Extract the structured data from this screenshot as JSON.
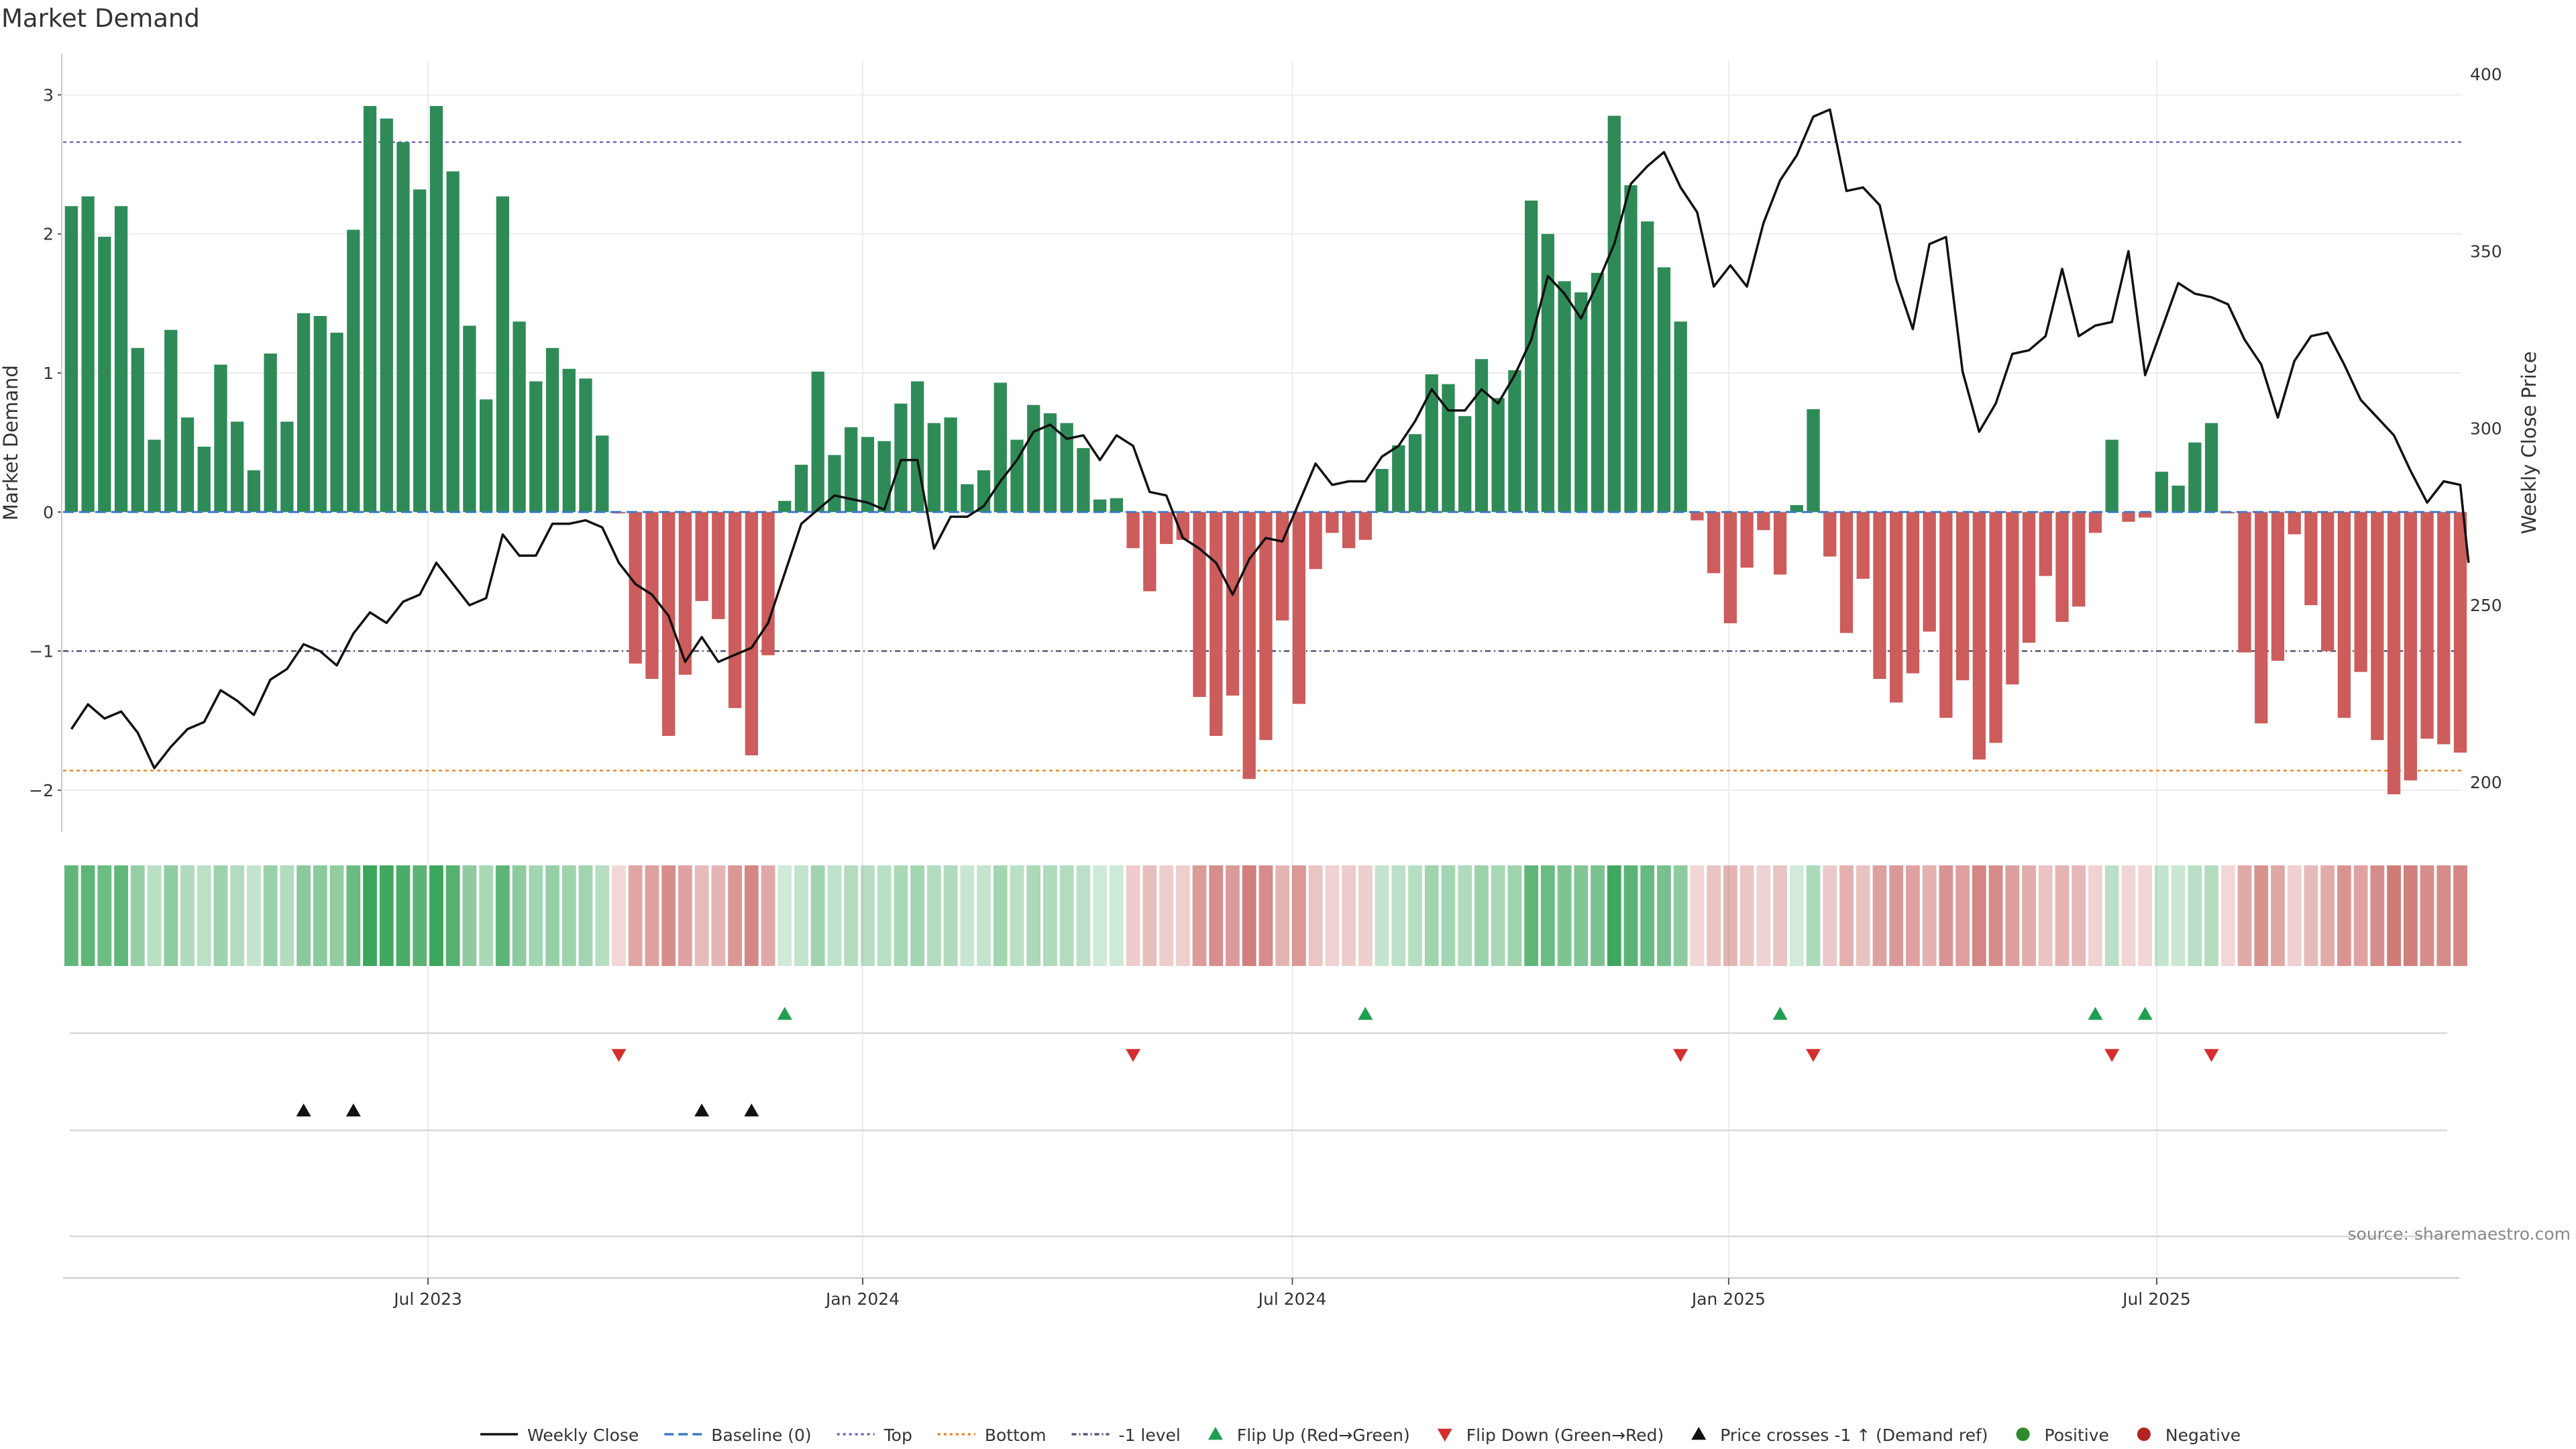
{
  "chart_data": {
    "type": "bar",
    "title": "Market Demand",
    "ylabel_left": "Market Demand",
    "ylabel_right": "Weekly Close Price",
    "source": "source: sharemaestro.com",
    "ylim": [
      -2.3,
      3.2
    ],
    "y2lim": [
      186,
      402
    ],
    "yticks_left": [
      3,
      2,
      1,
      0,
      -1,
      -2
    ],
    "yticks_left_labels": [
      "3",
      "2",
      "1",
      "0",
      "−1",
      "−2"
    ],
    "yticks_right": [
      400,
      350,
      300,
      250,
      200
    ],
    "yticks_right_labels": [
      "400",
      "350",
      "300",
      "250",
      "200"
    ],
    "x_start": "2023-02-12",
    "week_count": 144,
    "x_ticks": [
      {
        "label": "Jul 2023",
        "week": 21.5
      },
      {
        "label": "Jan 2024",
        "week": 47.7
      },
      {
        "label": "Jul 2024",
        "week": 73.6
      },
      {
        "label": "Jan 2025",
        "week": 99.9
      },
      {
        "label": "Jul 2025",
        "week": 125.7
      }
    ],
    "reference_lines": [
      {
        "name": "Top",
        "value": 2.66,
        "color": "#6a6abf",
        "dash": "dotted"
      },
      {
        "name": "-1 level",
        "value": -1.0,
        "color": "#555577",
        "dash": "dashed-dot"
      },
      {
        "name": "Bottom",
        "value": -1.86,
        "color": "#e08a2e",
        "dash": "dotted"
      },
      {
        "name": "Baseline (0)",
        "value": 0,
        "color": "#3d7ac7",
        "dash": "dashed"
      }
    ],
    "demand": [
      2.2,
      2.27,
      1.98,
      2.2,
      1.18,
      0.52,
      1.31,
      0.68,
      0.47,
      1.06,
      0.65,
      0.3,
      1.14,
      0.65,
      1.43,
      1.41,
      1.29,
      2.03,
      2.92,
      2.83,
      2.66,
      2.32,
      2.92,
      2.45,
      1.34,
      0.81,
      2.27,
      1.37,
      0.94,
      1.18,
      1.03,
      0.96,
      0.55,
      -0.01,
      -1.09,
      -1.2,
      -1.61,
      -1.17,
      -0.64,
      -0.77,
      -1.41,
      -1.75,
      -1.03,
      0.08,
      0.34,
      1.01,
      0.41,
      0.61,
      0.54,
      0.51,
      0.78,
      0.94,
      0.64,
      0.68,
      0.2,
      0.3,
      0.93,
      0.52,
      0.77,
      0.71,
      0.64,
      0.46,
      0.09,
      0.1,
      -0.26,
      -0.57,
      -0.23,
      -0.2,
      -1.33,
      -1.61,
      -1.32,
      -1.92,
      -1.64,
      -0.78,
      -1.38,
      -0.41,
      -0.15,
      -0.26,
      -0.2,
      0.31,
      0.48,
      0.56,
      0.99,
      0.92,
      0.69,
      1.1,
      0.82,
      1.02,
      2.24,
      2.0,
      1.66,
      1.58,
      1.72,
      2.85,
      2.35,
      2.09,
      1.76,
      1.37,
      -0.06,
      -0.44,
      -0.8,
      -0.4,
      -0.13,
      -0.45,
      0.05,
      0.74,
      -0.32,
      -0.87,
      -0.48,
      -1.2,
      -1.37,
      -1.16,
      -0.86,
      -1.48,
      -1.21,
      -1.78,
      -1.66,
      -1.24,
      -0.94,
      -0.46,
      -0.79,
      -0.68,
      -0.15,
      0.52,
      -0.07,
      -0.04,
      0.29,
      0.19,
      0.5,
      0.64,
      -0.01,
      -1.01,
      -1.52,
      -1.07,
      -0.16,
      -0.67,
      -1.0,
      -1.48,
      -1.15,
      -1.64,
      -2.03,
      -1.93,
      -1.63,
      -1.67,
      -1.73
    ],
    "close": [
      {
        "week": 0,
        "value": 215
      },
      {
        "week": 1,
        "value": 222
      },
      {
        "week": 2,
        "value": 218
      },
      {
        "week": 3,
        "value": 220
      },
      {
        "week": 4,
        "value": 214
      },
      {
        "week": 5,
        "value": 204
      },
      {
        "week": 6,
        "value": 210
      },
      {
        "week": 7,
        "value": 215
      },
      {
        "week": 8,
        "value": 217
      },
      {
        "week": 9,
        "value": 226
      },
      {
        "week": 10,
        "value": 223
      },
      {
        "week": 11,
        "value": 219
      },
      {
        "week": 12,
        "value": 229
      },
      {
        "week": 13,
        "value": 232
      },
      {
        "week": 14,
        "value": 239
      },
      {
        "week": 15,
        "value": 237
      },
      {
        "week": 16,
        "value": 233
      },
      {
        "week": 17,
        "value": 242
      },
      {
        "week": 18,
        "value": 248
      },
      {
        "week": 19,
        "value": 245
      },
      {
        "week": 20,
        "value": 251
      },
      {
        "week": 21,
        "value": 253
      },
      {
        "week": 22,
        "value": 262
      },
      {
        "week": 23,
        "value": 256
      },
      {
        "week": 24,
        "value": 250
      },
      {
        "week": 25,
        "value": 252
      },
      {
        "week": 26,
        "value": 270
      },
      {
        "week": 27,
        "value": 264
      },
      {
        "week": 28,
        "value": 264
      },
      {
        "week": 29,
        "value": 273
      },
      {
        "week": 30,
        "value": 273
      },
      {
        "week": 31,
        "value": 274
      },
      {
        "week": 32,
        "value": 272
      },
      {
        "week": 33,
        "value": 262
      },
      {
        "week": 34,
        "value": 256
      },
      {
        "week": 35,
        "value": 253
      },
      {
        "week": 36,
        "value": 247
      },
      {
        "week": 37,
        "value": 234
      },
      {
        "week": 38,
        "value": 241
      },
      {
        "week": 39,
        "value": 234
      },
      {
        "week": 40,
        "value": 236
      },
      {
        "week": 41,
        "value": 238
      },
      {
        "week": 42,
        "value": 245
      },
      {
        "week": 43,
        "value": 259
      },
      {
        "week": 44,
        "value": 273
      },
      {
        "week": 45,
        "value": 277
      },
      {
        "week": 46,
        "value": 281
      },
      {
        "week": 47,
        "value": 280
      },
      {
        "week": 48,
        "value": 279
      },
      {
        "week": 49,
        "value": 277
      },
      {
        "week": 50,
        "value": 291
      },
      {
        "week": 51,
        "value": 291
      },
      {
        "week": 52,
        "value": 266
      },
      {
        "week": 53,
        "value": 275
      },
      {
        "week": 54,
        "value": 275
      },
      {
        "week": 55,
        "value": 278
      },
      {
        "week": 56,
        "value": 285
      },
      {
        "week": 57,
        "value": 291
      },
      {
        "week": 58,
        "value": 299
      },
      {
        "week": 59,
        "value": 301
      },
      {
        "week": 60,
        "value": 297
      },
      {
        "week": 61,
        "value": 298
      },
      {
        "week": 62,
        "value": 291
      },
      {
        "week": 63,
        "value": 298
      },
      {
        "week": 64,
        "value": 295
      },
      {
        "week": 65,
        "value": 282
      },
      {
        "week": 66,
        "value": 281
      },
      {
        "week": 67,
        "value": 269
      },
      {
        "week": 68,
        "value": 266
      },
      {
        "week": 69,
        "value": 262
      },
      {
        "week": 70,
        "value": 253
      },
      {
        "week": 71,
        "value": 263
      },
      {
        "week": 72,
        "value": 269
      },
      {
        "week": 73,
        "value": 268
      },
      {
        "week": 74,
        "value": 279
      },
      {
        "week": 75,
        "value": 290
      },
      {
        "week": 76,
        "value": 284
      },
      {
        "week": 77,
        "value": 285
      },
      {
        "week": 78,
        "value": 285
      },
      {
        "week": 79,
        "value": 292
      },
      {
        "week": 80,
        "value": 295
      },
      {
        "week": 81,
        "value": 302
      },
      {
        "week": 82,
        "value": 311
      },
      {
        "week": 83,
        "value": 305
      },
      {
        "week": 84,
        "value": 305
      },
      {
        "week": 85,
        "value": 311
      },
      {
        "week": 86,
        "value": 307
      },
      {
        "week": 87,
        "value": 315
      },
      {
        "week": 88,
        "value": 325
      },
      {
        "week": 89,
        "value": 343
      },
      {
        "week": 90,
        "value": 338
      },
      {
        "week": 91,
        "value": 331
      },
      {
        "week": 92,
        "value": 341
      },
      {
        "week": 93,
        "value": 352
      },
      {
        "week": 94,
        "value": 369
      },
      {
        "week": 95,
        "value": 374
      },
      {
        "week": 96,
        "value": 378
      },
      {
        "week": 97,
        "value": 368
      },
      {
        "week": 98,
        "value": 361
      },
      {
        "week": 99,
        "value": 340
      },
      {
        "week": 100,
        "value": 346
      },
      {
        "week": 101,
        "value": 340
      },
      {
        "week": 102,
        "value": 358
      },
      {
        "week": 103,
        "value": 370
      },
      {
        "week": 104,
        "value": 377
      },
      {
        "week": 105,
        "value": 388
      },
      {
        "week": 106,
        "value": 390
      },
      {
        "week": 107,
        "value": 367
      },
      {
        "week": 108,
        "value": 368
      },
      {
        "week": 109,
        "value": 363
      },
      {
        "week": 110,
        "value": 342
      },
      {
        "week": 111,
        "value": 328
      },
      {
        "week": 112,
        "value": 352
      },
      {
        "week": 113,
        "value": 354
      },
      {
        "week": 114,
        "value": 316
      },
      {
        "week": 115,
        "value": 299
      },
      {
        "week": 116,
        "value": 307
      },
      {
        "week": 117,
        "value": 321
      },
      {
        "week": 118,
        "value": 322
      },
      {
        "week": 119,
        "value": 326
      },
      {
        "week": 120,
        "value": 345
      },
      {
        "week": 121,
        "value": 326
      },
      {
        "week": 122,
        "value": 329
      },
      {
        "week": 123,
        "value": 330
      },
      {
        "week": 124,
        "value": 350
      },
      {
        "week": 125,
        "value": 315
      },
      {
        "week": 126,
        "value": 328
      },
      {
        "week": 127,
        "value": 341
      },
      {
        "week": 128,
        "value": 338
      },
      {
        "week": 129,
        "value": 337
      },
      {
        "week": 130,
        "value": 335
      },
      {
        "week": 131,
        "value": 325
      },
      {
        "week": 132,
        "value": 318
      },
      {
        "week": 133,
        "value": 303
      },
      {
        "week": 134,
        "value": 319
      },
      {
        "week": 135,
        "value": 326
      },
      {
        "week": 136,
        "value": 327
      },
      {
        "week": 137,
        "value": 318
      },
      {
        "week": 138,
        "value": 308
      },
      {
        "week": 139,
        "value": 303
      },
      {
        "week": 140,
        "value": 298
      },
      {
        "week": 141,
        "value": 288
      },
      {
        "week": 142,
        "value": 279
      },
      {
        "week": 143,
        "value": 285
      },
      {
        "week": 144,
        "value": 284
      },
      {
        "week": 144.5,
        "value": 262
      }
    ],
    "flip_up_weeks": [
      43,
      78,
      103,
      122,
      125
    ],
    "flip_down_weeks": [
      33,
      64,
      97,
      105,
      123,
      129
    ],
    "price_cross_weeks": [
      14,
      17,
      38,
      41
    ],
    "colors": {
      "positive_bar": "#2e8b57",
      "negative_bar": "#cd5c5c",
      "close_line": "#111111",
      "flip_up": "#1f9e4f",
      "flip_down": "#d32f2f",
      "price_cross": "#111111",
      "positive_dot": "#2e8b2e",
      "negative_dot": "#b22222",
      "strip_positive": "#3aa55a",
      "strip_negative": "#c0504d"
    },
    "legend": [
      {
        "label": "Weekly Close",
        "kind": "line",
        "color": "#111111"
      },
      {
        "label": "Baseline (0)",
        "kind": "dashed",
        "color": "#3d7ac7"
      },
      {
        "label": "Top",
        "kind": "dotted",
        "color": "#6a6abf"
      },
      {
        "label": "Bottom",
        "kind": "dotted",
        "color": "#e08a2e"
      },
      {
        "label": "-1 level",
        "kind": "dashdot",
        "color": "#555577"
      },
      {
        "label": "Flip Up (Red→Green)",
        "kind": "tri-up",
        "color": "#1f9e4f"
      },
      {
        "label": "Flip Down (Green→Red)",
        "kind": "tri-down",
        "color": "#d32f2f"
      },
      {
        "label": "Price crosses -1 ↑ (Demand ref)",
        "kind": "tri-up",
        "color": "#111111"
      },
      {
        "label": "Positive",
        "kind": "dot",
        "color": "#2e8b2e"
      },
      {
        "label": "Negative",
        "kind": "dot",
        "color": "#b22222"
      }
    ]
  }
}
